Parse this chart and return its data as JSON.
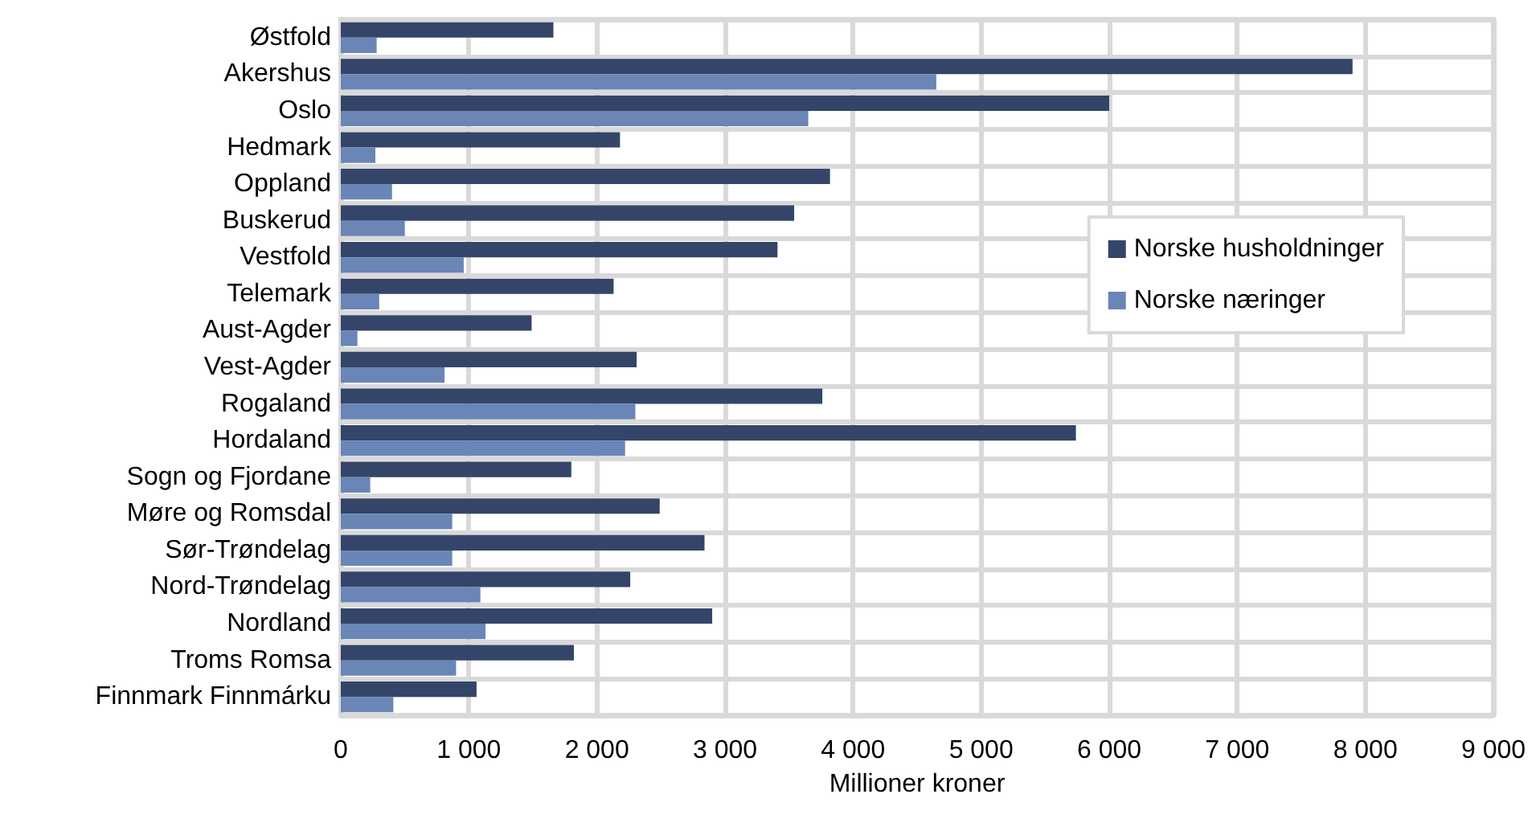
{
  "chart_data": {
    "type": "bar",
    "orientation": "horizontal",
    "xlabel": "Millioner kroner",
    "categories": [
      "Østfold",
      "Akershus",
      "Oslo",
      "Hedmark",
      "Oppland",
      "Buskerud",
      "Vestfold",
      "Telemark",
      "Aust-Agder",
      "Vest-Agder",
      "Rogaland",
      "Hordaland",
      "Sogn og Fjordane",
      "Møre og Romsdal",
      "Sør-Trøndelag",
      "Nord-Trøndelag",
      "Nordland",
      "Troms Romsa",
      "Finnmark Finnmárku"
    ],
    "series": [
      {
        "name": "Norske husholdninger",
        "color": "#344569",
        "values": [
          1660,
          7900,
          6000,
          2180,
          3820,
          3540,
          3410,
          2130,
          1490,
          2310,
          3760,
          5740,
          1800,
          2490,
          2840,
          2260,
          2900,
          1820,
          1060
        ]
      },
      {
        "name": "Norske næringer",
        "color": "#6a86b6",
        "values": [
          280,
          4650,
          3650,
          270,
          400,
          500,
          960,
          300,
          130,
          810,
          2300,
          2220,
          230,
          870,
          870,
          1090,
          1130,
          900,
          410
        ]
      }
    ],
    "xlim": [
      0,
      9000
    ],
    "xticks": [
      {
        "value": 0,
        "label": "0"
      },
      {
        "value": 1000,
        "label": "1 000"
      },
      {
        "value": 2000,
        "label": "2 000"
      },
      {
        "value": 3000,
        "label": "3 000"
      },
      {
        "value": 4000,
        "label": "4 000"
      },
      {
        "value": 5000,
        "label": "5 000"
      },
      {
        "value": 6000,
        "label": "6 000"
      },
      {
        "value": 7000,
        "label": "7 000"
      },
      {
        "value": 8000,
        "label": "8 000"
      },
      {
        "value": 9000,
        "label": "9 000"
      }
    ],
    "grid": true,
    "legend": "right"
  }
}
